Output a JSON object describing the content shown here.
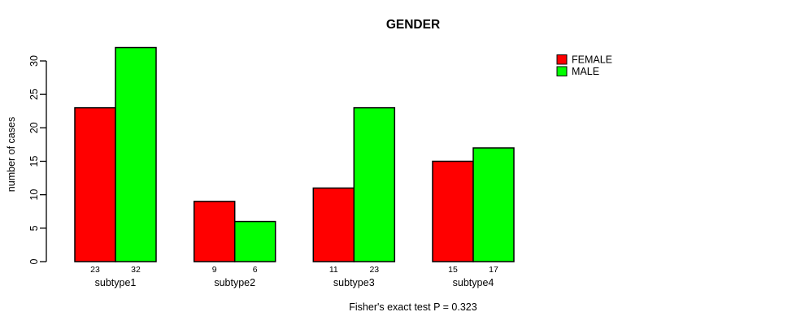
{
  "chart_data": {
    "type": "bar",
    "title": "GENDER",
    "ylabel": "number of cases",
    "xlabel": "",
    "categories": [
      "subtype1",
      "subtype2",
      "subtype3",
      "subtype4"
    ],
    "series": [
      {
        "name": "FEMALE",
        "color": "#FF0000",
        "values": [
          23,
          9,
          11,
          15
        ]
      },
      {
        "name": "MALE",
        "color": "#00FF00",
        "values": [
          32,
          6,
          23,
          17
        ]
      }
    ],
    "bar_value_labels": [
      [
        "23",
        "32"
      ],
      [
        "9",
        "6"
      ],
      [
        "11",
        "23"
      ],
      [
        "15",
        "17"
      ]
    ],
    "yticks": [
      0,
      5,
      10,
      15,
      20,
      25,
      30
    ],
    "ylim": [
      0,
      30
    ],
    "grid": "off",
    "legend_position": "top-right",
    "bar_border_color": "#000000",
    "footnote": "Fisher's exact test P = 0.323"
  }
}
